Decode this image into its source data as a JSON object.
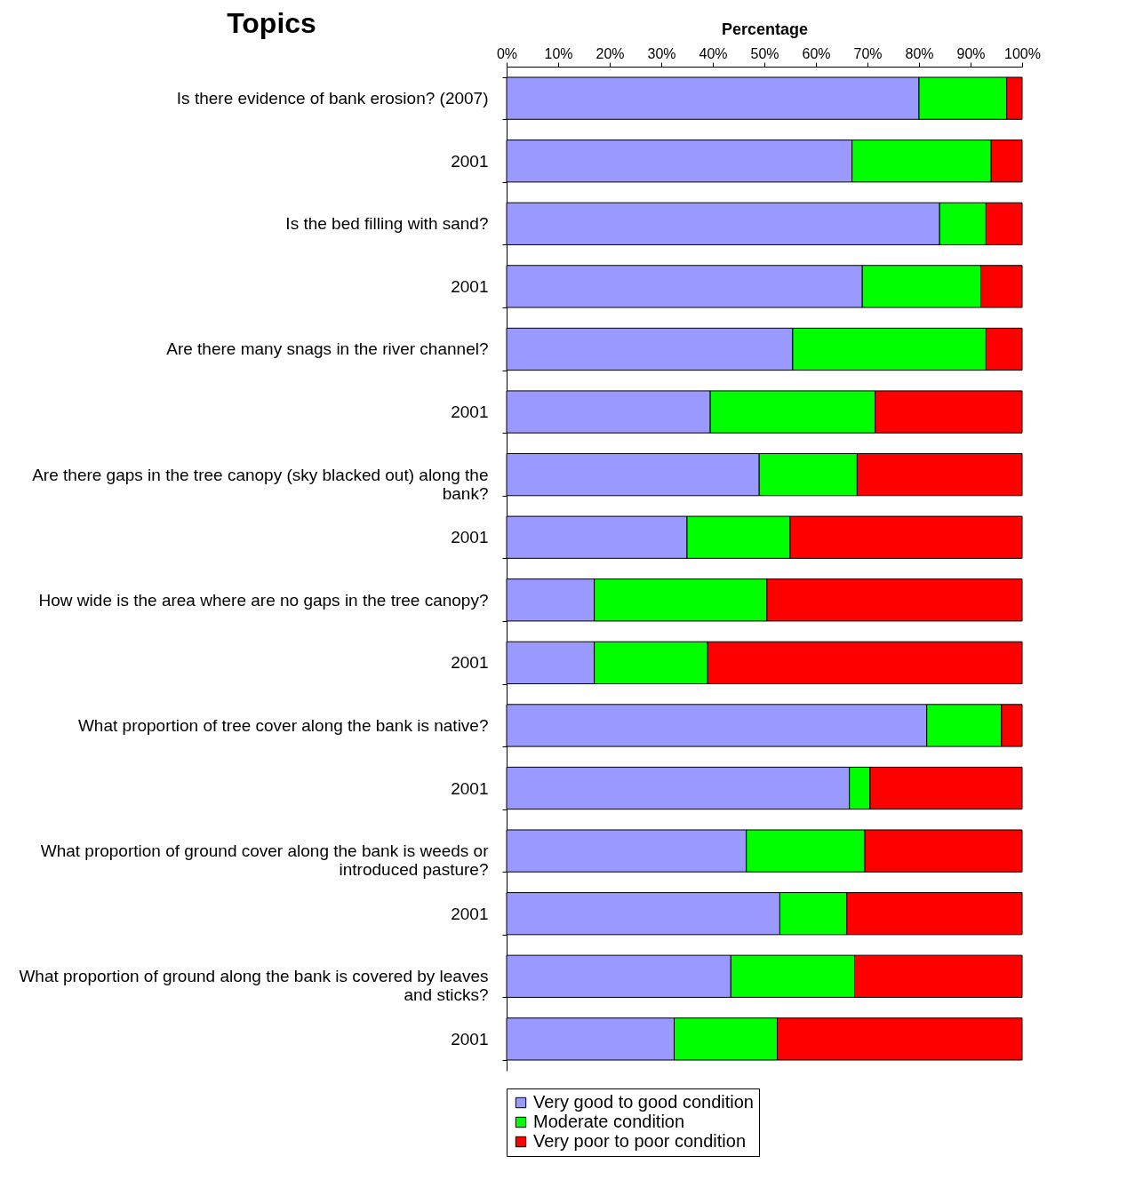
{
  "chart_data": {
    "type": "bar",
    "orientation": "horizontal",
    "stacked": true,
    "ylabel": "Topics",
    "xlabel": "Percentage",
    "categories": [
      "Is there evidence of bank erosion? (2007)",
      "2001",
      "Is the bed filling with sand?",
      "2001",
      "Are there many snags in the river channel?",
      "2001",
      "Are there gaps in the tree canopy (sky blacked out) along the bank?",
      "2001",
      "How wide is the area where are no gaps in the tree canopy?",
      "2001",
      "What proportion of tree cover along the bank is native?",
      "2001",
      "What proportion of ground cover along the bank is weeds or introduced pasture?",
      "2001",
      "What proportion of ground along the bank is covered by leaves and sticks?",
      "2001"
    ],
    "series": [
      {
        "name": "Very good to good condition",
        "color": "#9999ff",
        "values": [
          80,
          67,
          84,
          69,
          55.5,
          39.5,
          49,
          35,
          17,
          17,
          81.5,
          66.5,
          46.5,
          53,
          43.5,
          32.5
        ]
      },
      {
        "name": "Moderate condition",
        "color": "#00ff00",
        "values": [
          17,
          27,
          9,
          23,
          37.5,
          32,
          19,
          20,
          33.5,
          22,
          14.5,
          4,
          23,
          13,
          24,
          20
        ]
      },
      {
        "name": "Very poor to poor condition",
        "color": "#ff0000",
        "values": [
          3,
          6,
          7,
          8,
          7,
          28.5,
          32,
          45,
          49.5,
          61,
          4,
          29.5,
          30.5,
          34,
          32.5,
          47.5
        ]
      }
    ],
    "xlim": [
      0,
      100
    ],
    "xticks": [
      {
        "value": 0,
        "label": "0%"
      },
      {
        "value": 10,
        "label": "10%"
      },
      {
        "value": 20,
        "label": "20%"
      },
      {
        "value": 30,
        "label": "30%"
      },
      {
        "value": 40,
        "label": "40%"
      },
      {
        "value": 50,
        "label": "50%"
      },
      {
        "value": 60,
        "label": "60%"
      },
      {
        "value": 70,
        "label": "70%"
      },
      {
        "value": 80,
        "label": "80%"
      },
      {
        "value": 90,
        "label": "90%"
      },
      {
        "value": 100,
        "label": "100%"
      }
    ],
    "grid": false,
    "legend": "bottom"
  }
}
